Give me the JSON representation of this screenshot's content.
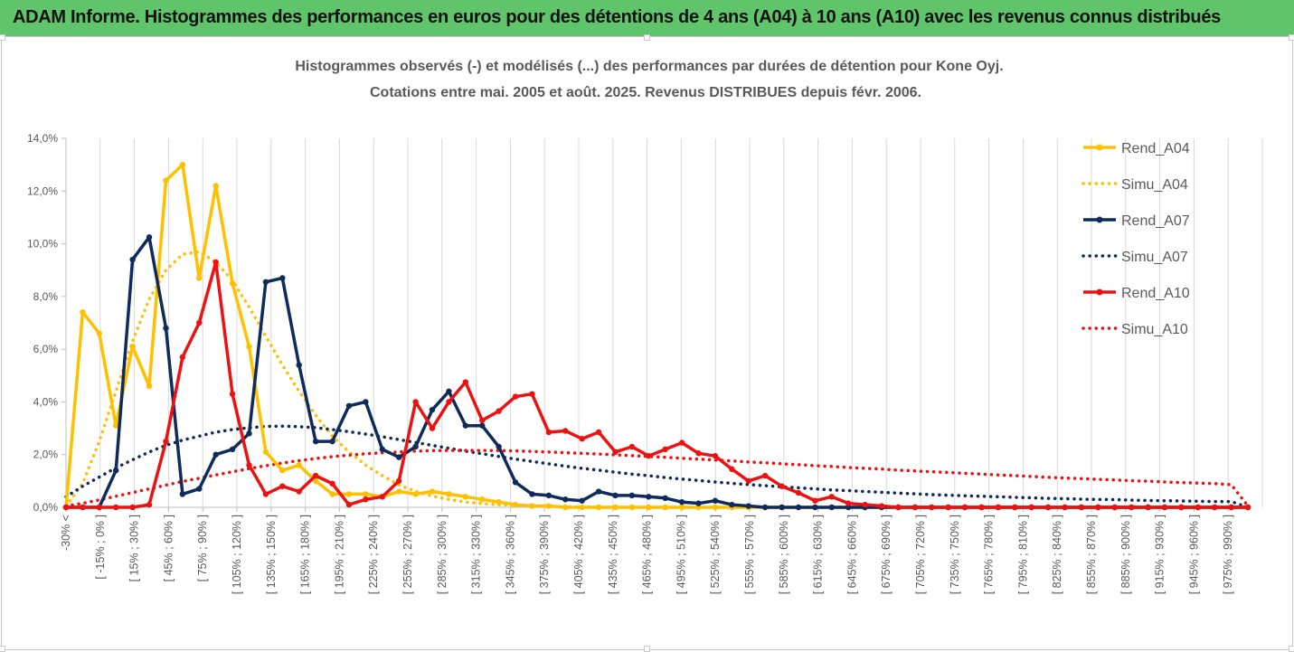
{
  "banner": {
    "title": "ADAM Informe. Histogrammes des performances en euros pour des détentions de 4 ans (A04) à 10 ans (A10) avec les revenus connus distribués"
  },
  "colors": {
    "banner_bg": "#5fc46a",
    "yellow": "#ffc000",
    "navy": "#0f2a5c",
    "red": "#ee1111"
  },
  "chart_data": {
    "type": "line",
    "title": "Histogrammes observés (-) et modélisés (...) des performances par durées de détention pour Kone Oyj.",
    "subtitle": "Cotations entre mai. 2005 et août. 2025.  Revenus DISTRIBUES depuis févr. 2006.",
    "ylim": [
      0,
      14
    ],
    "y_ticks": [
      "0,0%",
      "2,0%",
      "4,0%",
      "6,0%",
      "8,0%",
      "10,0%",
      "12,0%",
      "14,0%"
    ],
    "grid": "vertical",
    "legend_position": "right",
    "x_labels": [
      "-30% <",
      "[ -15% ; 0% ]",
      "[ 15% ; 30% ]",
      "[ 45% ; 60% ]",
      "[ 75% ; 90% ]",
      "[ 105% ; 120% ]",
      "[ 135% ; 150% ]",
      "[ 165% ; 180% ]",
      "[ 195% ; 210% ]",
      "[ 225% ; 240% ]",
      "[ 255% ; 270% ]",
      "[ 285% ; 300% ]",
      "[ 315% ; 330% ]",
      "[ 345% ; 360% ]",
      "[ 375% ; 390% ]",
      "[ 405% ; 420% ]",
      "[ 435% ; 450% ]",
      "[ 465% ; 480% ]",
      "[ 495% ; 510% ]",
      "[ 525% ; 540% ]",
      "[ 555% ; 570% ]",
      "[ 585% ; 600% ]",
      "[ 615% ; 630% ]",
      "[ 645% ; 660% ]",
      "[ 675% ; 690% ]",
      "[ 705% ; 720% ]",
      "[ 735% ; 750% ]",
      "[ 765% ; 780% ]",
      "[ 795% ; 810% ]",
      "[ 825% ; 840% ]",
      "[ 855% ; 870% ]",
      "[ 885% ; 900% ]",
      "[ 915% ; 930% ]",
      "[ 945% ; 960% ]",
      "[ 975% ; 990% ]"
    ],
    "series": [
      {
        "name": "Rend_A04",
        "style": "solid",
        "color": "#ffc000",
        "values": [
          0,
          7.4,
          6.6,
          3.1,
          6.1,
          4.6,
          12.4,
          13.0,
          8.7,
          12.2,
          8.5,
          6.1,
          2.1,
          1.4,
          1.6,
          1.0,
          0.5,
          0.5,
          0.5,
          0.4,
          0.6,
          0.5,
          0.6,
          0.5,
          0.4,
          0.3,
          0.2,
          0.1,
          0.05,
          0.05,
          0,
          0,
          0,
          0,
          0,
          0,
          0,
          0,
          0,
          0,
          0,
          0,
          0,
          0,
          0,
          0,
          0,
          0,
          0,
          0,
          0,
          0,
          0,
          0,
          0,
          0,
          0,
          0,
          0,
          0,
          0,
          0,
          0,
          0,
          0,
          0,
          0,
          0,
          0,
          0,
          0,
          0
        ]
      },
      {
        "name": "Simu_A04",
        "style": "dotted",
        "color": "#ffc000",
        "values": [
          0.05,
          0.9,
          2.5,
          4.4,
          6.3,
          7.9,
          9.0,
          9.6,
          9.7,
          9.3,
          8.6,
          7.6,
          6.5,
          5.4,
          4.4,
          3.5,
          2.7,
          2.1,
          1.6,
          1.2,
          0.85,
          0.6,
          0.43,
          0.3,
          0.2,
          0.14,
          0.1,
          0.07,
          0.05,
          0.03,
          0.02,
          0.01,
          0,
          0,
          0,
          0,
          0,
          0,
          0,
          0,
          0,
          0,
          0,
          0,
          0,
          0,
          0,
          0,
          0,
          0,
          0,
          0,
          0,
          0,
          0,
          0,
          0,
          0,
          0,
          0,
          0,
          0,
          0,
          0,
          0,
          0,
          0,
          0,
          0,
          0,
          0,
          0
        ]
      },
      {
        "name": "Rend_A07",
        "style": "solid",
        "color": "#0f2a5c",
        "values": [
          0,
          0,
          0,
          1.4,
          9.4,
          10.25,
          6.8,
          0.5,
          0.7,
          2.0,
          2.2,
          2.8,
          8.55,
          8.7,
          5.4,
          2.5,
          2.5,
          3.85,
          4.0,
          2.2,
          1.9,
          2.3,
          3.7,
          4.4,
          3.1,
          3.1,
          2.3,
          0.95,
          0.5,
          0.45,
          0.3,
          0.25,
          0.6,
          0.45,
          0.45,
          0.4,
          0.35,
          0.2,
          0.15,
          0.25,
          0.1,
          0.05,
          0,
          0,
          0,
          0,
          0,
          0,
          0,
          0,
          0,
          0,
          0,
          0,
          0,
          0,
          0,
          0,
          0,
          0,
          0,
          0,
          0,
          0,
          0,
          0,
          0,
          0,
          0,
          0,
          0,
          0
        ]
      },
      {
        "name": "Simu_A07",
        "style": "dotted",
        "color": "#0f2a5c",
        "values": [
          0.4,
          0.8,
          1.15,
          1.5,
          1.8,
          2.1,
          2.35,
          2.55,
          2.7,
          2.85,
          2.95,
          3.02,
          3.07,
          3.08,
          3.06,
          3.02,
          2.95,
          2.87,
          2.78,
          2.68,
          2.57,
          2.46,
          2.35,
          2.24,
          2.13,
          2.03,
          1.93,
          1.83,
          1.74,
          1.65,
          1.56,
          1.48,
          1.41,
          1.33,
          1.26,
          1.2,
          1.13,
          1.07,
          1.02,
          0.96,
          0.91,
          0.86,
          0.82,
          0.78,
          0.74,
          0.7,
          0.66,
          0.63,
          0.6,
          0.57,
          0.54,
          0.51,
          0.48,
          0.46,
          0.44,
          0.42,
          0.4,
          0.38,
          0.36,
          0.34,
          0.33,
          0.31,
          0.3,
          0.29,
          0.27,
          0.26,
          0.25,
          0.24,
          0.23,
          0.22,
          0.22,
          0.0
        ]
      },
      {
        "name": "Rend_A10",
        "style": "solid",
        "color": "#ee1111",
        "values": [
          0,
          0,
          0,
          0,
          0,
          0.1,
          2.5,
          5.7,
          7.0,
          9.3,
          4.3,
          1.6,
          0.5,
          0.8,
          0.6,
          1.2,
          0.9,
          0.1,
          0.3,
          0.4,
          1.0,
          4.0,
          3.0,
          4.0,
          4.75,
          3.3,
          3.65,
          4.2,
          4.3,
          2.85,
          2.9,
          2.6,
          2.85,
          2.1,
          2.3,
          1.95,
          2.2,
          2.45,
          2.05,
          1.95,
          1.45,
          1.0,
          1.2,
          0.8,
          0.55,
          0.25,
          0.4,
          0.15,
          0.1,
          0.05,
          0,
          0,
          0,
          0,
          0,
          0,
          0,
          0,
          0,
          0,
          0,
          0,
          0,
          0,
          0,
          0,
          0,
          0,
          0,
          0,
          0,
          0
        ]
      },
      {
        "name": "Simu_A10",
        "style": "dotted",
        "color": "#ee1111",
        "values": [
          0.05,
          0.15,
          0.28,
          0.42,
          0.56,
          0.7,
          0.84,
          0.98,
          1.1,
          1.23,
          1.35,
          1.47,
          1.58,
          1.68,
          1.77,
          1.85,
          1.92,
          1.98,
          2.03,
          2.07,
          2.1,
          2.13,
          2.15,
          2.16,
          2.16,
          2.16,
          2.15,
          2.14,
          2.12,
          2.1,
          2.07,
          2.05,
          2.02,
          1.99,
          1.96,
          1.93,
          1.9,
          1.86,
          1.83,
          1.79,
          1.76,
          1.72,
          1.69,
          1.65,
          1.62,
          1.58,
          1.55,
          1.51,
          1.48,
          1.45,
          1.41,
          1.38,
          1.35,
          1.32,
          1.29,
          1.26,
          1.23,
          1.2,
          1.17,
          1.14,
          1.11,
          1.09,
          1.06,
          1.04,
          1.01,
          0.99,
          0.96,
          0.94,
          0.92,
          0.9,
          0.86,
          0.05
        ]
      }
    ]
  }
}
